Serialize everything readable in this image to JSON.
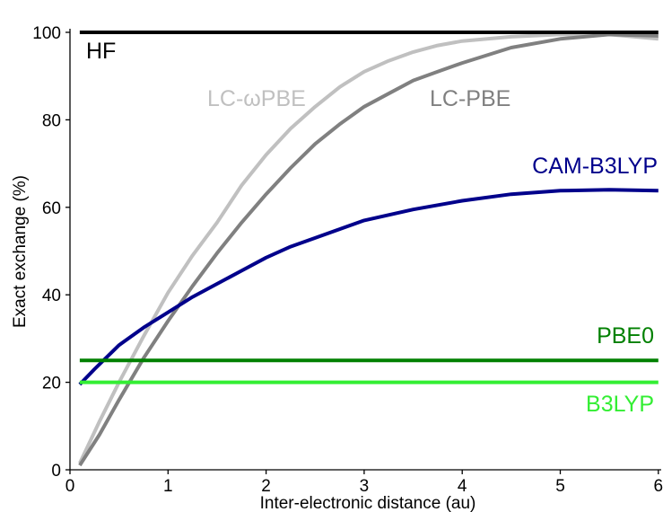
{
  "chart_data": {
    "type": "line",
    "xlabel": "Inter-electronic distance (au)",
    "ylabel": "Exact exchange (%)",
    "xlim": [
      0,
      6.05
    ],
    "ylim": [
      0,
      100
    ],
    "xticks": [
      0,
      1,
      2,
      3,
      4,
      5,
      6
    ],
    "yticks": [
      0,
      20,
      40,
      60,
      80,
      100
    ],
    "grid": false,
    "legend": "inline labels",
    "series": [
      {
        "name": "LC-ωPBE",
        "color": "#c0c0c0",
        "x": [
          0.1,
          0.3,
          0.5,
          0.75,
          1.0,
          1.25,
          1.5,
          1.75,
          2.0,
          2.25,
          2.5,
          2.75,
          3.0,
          3.25,
          3.5,
          3.75,
          4.0,
          4.5,
          5.0,
          5.5,
          6.0
        ],
        "y": [
          1.5,
          11,
          20,
          30.5,
          40.5,
          49,
          56.5,
          65,
          72,
          78,
          83,
          87.5,
          91,
          93.5,
          95.5,
          97,
          98,
          99,
          99.5,
          99.5,
          98.5
        ]
      },
      {
        "name": "LC-PBE",
        "color": "#808080",
        "x": [
          0.1,
          0.3,
          0.5,
          0.75,
          1.0,
          1.25,
          1.5,
          1.75,
          2.0,
          2.25,
          2.5,
          2.75,
          3.0,
          3.25,
          3.5,
          3.75,
          4.0,
          4.5,
          5.0,
          5.5,
          6.0
        ],
        "y": [
          1,
          8,
          16,
          25.5,
          34,
          42,
          49.5,
          56.5,
          63,
          69,
          74.5,
          79,
          83,
          86,
          89,
          91,
          93,
          96.5,
          98.5,
          99.5,
          99.2
        ]
      },
      {
        "name": "CAM-B3LYP",
        "color": "#00008b",
        "x": [
          0.1,
          0.25,
          0.5,
          0.75,
          1.0,
          1.25,
          1.5,
          1.75,
          2.0,
          2.25,
          2.5,
          2.75,
          3.0,
          3.5,
          4.0,
          4.5,
          5.0,
          5.5,
          6.0
        ],
        "y": [
          19.5,
          23,
          28.5,
          32.5,
          36,
          39.5,
          42.5,
          45.5,
          48.5,
          51,
          53,
          55,
          57,
          59.5,
          61.5,
          63,
          63.8,
          64,
          63.8
        ]
      },
      {
        "name": "HF",
        "color": "#000000",
        "x": [
          0.1,
          6.0
        ],
        "y": [
          100,
          100
        ]
      },
      {
        "name": "PBE0",
        "color": "#008000",
        "x": [
          0.1,
          6.0
        ],
        "y": [
          25,
          25
        ]
      },
      {
        "name": "B3LYP",
        "color": "#33ee33",
        "x": [
          0.1,
          6.0
        ],
        "y": [
          20,
          20
        ]
      }
    ]
  }
}
